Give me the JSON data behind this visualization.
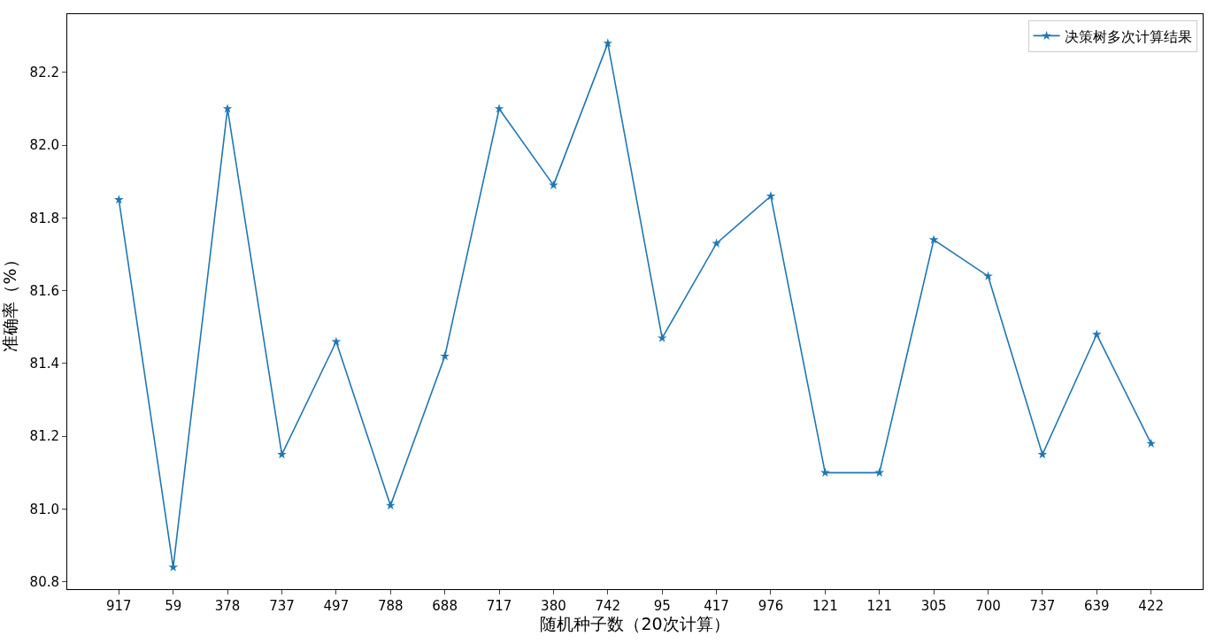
{
  "chart_data": {
    "type": "line",
    "xlabel": "随机种子数（20次计算）",
    "ylabel": "准确率（%）",
    "categories": [
      "917",
      "59",
      "378",
      "737",
      "497",
      "788",
      "688",
      "717",
      "380",
      "742",
      "95",
      "417",
      "976",
      "121",
      "121",
      "305",
      "700",
      "737",
      "639",
      "422"
    ],
    "series": [
      {
        "name": "决策树多次计算结果",
        "color": "#1f77b4",
        "values": [
          81.85,
          80.84,
          82.1,
          81.15,
          81.46,
          81.01,
          81.42,
          82.1,
          81.89,
          82.28,
          81.47,
          81.73,
          81.86,
          81.1,
          81.1,
          81.74,
          81.64,
          81.15,
          81.48,
          81.18
        ]
      }
    ],
    "ylim": [
      80.78,
      82.36
    ],
    "yticks": [
      {
        "value": 80.8,
        "label": "80.8"
      },
      {
        "value": 81.0,
        "label": "81.0"
      },
      {
        "value": 81.2,
        "label": "81.2"
      },
      {
        "value": 81.4,
        "label": "81.4"
      },
      {
        "value": 81.6,
        "label": "81.6"
      },
      {
        "value": 81.8,
        "label": "81.8"
      },
      {
        "value": 82.0,
        "label": "82.0"
      },
      {
        "value": 82.2,
        "label": "82.2"
      }
    ],
    "legend": "top right",
    "marker": "star",
    "line_style": "solid"
  }
}
